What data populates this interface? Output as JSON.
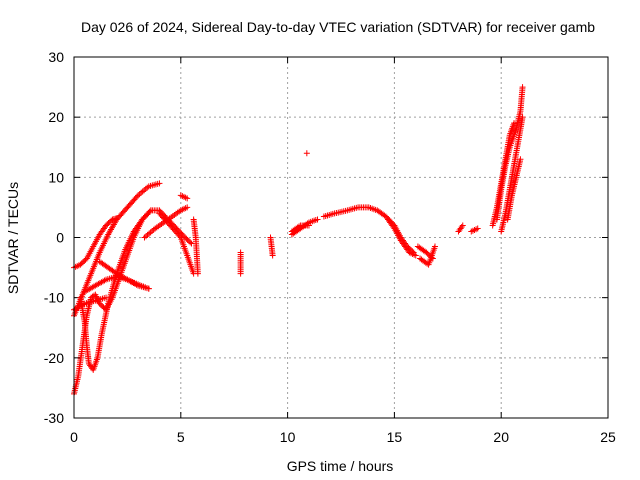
{
  "chart_data": {
    "type": "scatter",
    "title": "Day 026 of 2024, Sidereal Day-to-day VTEC variation (SDTVAR) for receiver gamb",
    "xlabel": "GPS time / hours",
    "ylabel": "SDTVAR / TECUs",
    "xlim": [
      0,
      25
    ],
    "ylim": [
      -30,
      30
    ],
    "xticks": [
      0,
      5,
      10,
      15,
      20,
      25
    ],
    "yticks": [
      -30,
      -20,
      -10,
      0,
      10,
      20,
      30
    ],
    "grid": true,
    "marker": "+",
    "series": [
      {
        "name": "SDTVAR",
        "color": "#ff0000",
        "tracks": [
          [
            [
              0.0,
              -5.0
            ],
            [
              0.3,
              -4.5
            ],
            [
              0.6,
              -3.5
            ],
            [
              0.9,
              -1.5
            ],
            [
              1.2,
              0.5
            ],
            [
              1.5,
              2.0
            ],
            [
              1.8,
              3.0
            ],
            [
              2.0,
              3.2
            ]
          ],
          [
            [
              0.0,
              -13.0
            ],
            [
              0.4,
              -9.5
            ],
            [
              0.8,
              -6.0
            ],
            [
              1.2,
              -2.5
            ],
            [
              1.6,
              0.5
            ],
            [
              2.0,
              3.0
            ],
            [
              2.5,
              5.0
            ],
            [
              3.0,
              7.0
            ],
            [
              3.5,
              8.5
            ],
            [
              4.0,
              9.0
            ]
          ],
          [
            [
              0.0,
              -26.0
            ],
            [
              0.2,
              -23.0
            ],
            [
              0.4,
              -18.0
            ],
            [
              0.6,
              -13.0
            ],
            [
              0.8,
              -10.0
            ],
            [
              1.0,
              -9.5
            ],
            [
              1.2,
              -11.0
            ],
            [
              1.5,
              -12.0
            ],
            [
              1.8,
              -10.0
            ],
            [
              2.1,
              -7.0
            ],
            [
              2.4,
              -4.0
            ],
            [
              2.8,
              0.0
            ],
            [
              3.2,
              3.0
            ],
            [
              3.6,
              4.5
            ],
            [
              4.0,
              4.5
            ],
            [
              4.4,
              3.0
            ],
            [
              4.8,
              1.5
            ],
            [
              5.2,
              0.0
            ],
            [
              5.5,
              -1.0
            ]
          ],
          [
            [
              0.3,
              -10.0
            ],
            [
              0.5,
              -14.0
            ],
            [
              0.6,
              -18.0
            ],
            [
              0.7,
              -21.0
            ],
            [
              0.9,
              -22.0
            ],
            [
              1.1,
              -20.0
            ],
            [
              1.3,
              -16.0
            ],
            [
              1.6,
              -11.0
            ],
            [
              2.0,
              -6.0
            ],
            [
              2.4,
              -2.0
            ],
            [
              2.8,
              1.0
            ],
            [
              3.2,
              3.0
            ],
            [
              3.6,
              4.5
            ]
          ],
          [
            [
              0.5,
              -9.0
            ],
            [
              1.0,
              -8.0
            ],
            [
              1.5,
              -7.0
            ],
            [
              2.0,
              -6.5
            ],
            [
              2.5,
              -7.0
            ],
            [
              3.0,
              -7.8
            ],
            [
              3.5,
              -8.5
            ]
          ],
          [
            [
              1.2,
              -4.0
            ],
            [
              1.6,
              -5.0
            ],
            [
              2.0,
              -6.0
            ],
            [
              2.5,
              -7.0
            ],
            [
              3.0,
              -8.0
            ],
            [
              3.5,
              -8.5
            ]
          ],
          [
            [
              0.0,
              -12.0
            ],
            [
              0.5,
              -11.0
            ],
            [
              1.0,
              -10.5
            ],
            [
              1.5,
              -10.0
            ]
          ],
          [
            [
              3.3,
              0.0
            ],
            [
              3.8,
              1.5
            ],
            [
              4.4,
              3.0
            ],
            [
              5.0,
              4.5
            ],
            [
              5.3,
              5.0
            ]
          ],
          [
            [
              4.0,
              4.0
            ],
            [
              4.5,
              2.0
            ],
            [
              5.0,
              0.0
            ],
            [
              5.6,
              -6.0
            ]
          ],
          [
            [
              5.0,
              7.0
            ],
            [
              5.3,
              6.5
            ]
          ],
          [
            [
              5.6,
              3.0
            ],
            [
              5.7,
              0.0
            ],
            [
              5.8,
              -6.0
            ]
          ],
          [
            [
              7.8,
              -2.5
            ],
            [
              7.8,
              -6.0
            ]
          ],
          [
            [
              9.2,
              0.0
            ],
            [
              9.3,
              -3.0
            ]
          ],
          [
            [
              10.2,
              0.5
            ],
            [
              10.6,
              1.5
            ],
            [
              11.0,
              2.5
            ],
            [
              11.4,
              3.0
            ]
          ],
          [
            [
              10.2,
              1.0
            ],
            [
              10.6,
              2.0
            ],
            [
              11.0,
              2.0
            ]
          ],
          [
            [
              10.9,
              14.0
            ]
          ],
          [
            [
              11.7,
              3.5
            ],
            [
              12.2,
              4.0
            ],
            [
              12.8,
              4.5
            ],
            [
              13.3,
              5.0
            ],
            [
              13.8,
              5.0
            ],
            [
              14.2,
              4.5
            ],
            [
              14.6,
              3.5
            ],
            [
              15.0,
              2.0
            ],
            [
              15.3,
              0.0
            ],
            [
              15.6,
              -1.5
            ],
            [
              15.9,
              -2.5
            ]
          ],
          [
            [
              14.7,
              3.0
            ],
            [
              15.0,
              1.5
            ],
            [
              15.3,
              -0.5
            ],
            [
              15.7,
              -2.5
            ],
            [
              16.0,
              -3.0
            ]
          ],
          [
            [
              16.1,
              -1.5
            ],
            [
              16.5,
              -2.5
            ],
            [
              16.8,
              -3.5
            ]
          ],
          [
            [
              16.2,
              -3.5
            ],
            [
              16.6,
              -4.5
            ],
            [
              16.9,
              -1.5
            ]
          ],
          [
            [
              18.0,
              1.0
            ],
            [
              18.2,
              2.0
            ]
          ],
          [
            [
              18.6,
              1.0
            ],
            [
              18.9,
              1.5
            ]
          ],
          [
            [
              19.6,
              2.0
            ],
            [
              19.8,
              5.0
            ],
            [
              20.0,
              9.0
            ],
            [
              20.2,
              13.0
            ],
            [
              20.4,
              17.0
            ],
            [
              20.6,
              19.0
            ]
          ],
          [
            [
              19.8,
              3.0
            ],
            [
              20.0,
              8.0
            ],
            [
              20.2,
              12.0
            ],
            [
              20.4,
              15.0
            ],
            [
              20.7,
              18.0
            ],
            [
              20.9,
              21.0
            ],
            [
              21.0,
              25.0
            ]
          ],
          [
            [
              20.0,
              1.0
            ],
            [
              20.2,
              4.0
            ],
            [
              20.4,
              8.0
            ],
            [
              20.6,
              12.0
            ],
            [
              20.8,
              16.0
            ],
            [
              21.0,
              20.0
            ]
          ],
          [
            [
              20.3,
              3.0
            ],
            [
              20.5,
              7.0
            ],
            [
              20.7,
              10.0
            ],
            [
              20.9,
              13.0
            ]
          ]
        ]
      }
    ]
  }
}
